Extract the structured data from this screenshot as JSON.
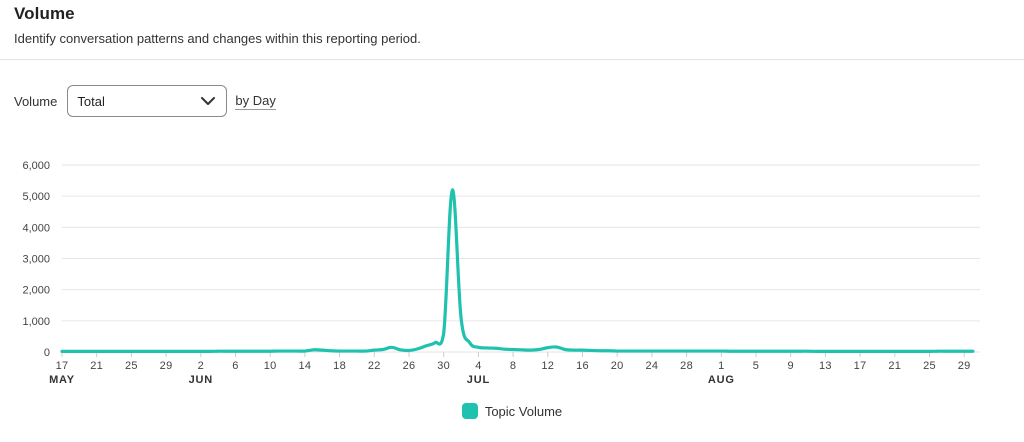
{
  "header": {
    "title": "Volume",
    "subtitle": "Identify conversation patterns and changes within this reporting period."
  },
  "controls": {
    "label": "Volume",
    "select_value": "Total",
    "by_label": "by Day"
  },
  "colors": {
    "series": "#1fc2ae",
    "grid": "#e6e6e6"
  },
  "chart_data": {
    "type": "line",
    "xlabel": "",
    "ylabel": "",
    "ylim": [
      0,
      6000
    ],
    "yticks": [
      0,
      1000,
      2000,
      3000,
      4000,
      5000,
      6000
    ],
    "ytick_labels": [
      "0",
      "1,000",
      "2,000",
      "3,000",
      "4,000",
      "5,000",
      "6,000"
    ],
    "x_tick_labels": [
      {
        "day": "17",
        "month": "MAY"
      },
      {
        "day": "21",
        "month": ""
      },
      {
        "day": "25",
        "month": ""
      },
      {
        "day": "29",
        "month": ""
      },
      {
        "day": "2",
        "month": "JUN"
      },
      {
        "day": "6",
        "month": ""
      },
      {
        "day": "10",
        "month": ""
      },
      {
        "day": "14",
        "month": ""
      },
      {
        "day": "18",
        "month": ""
      },
      {
        "day": "22",
        "month": ""
      },
      {
        "day": "26",
        "month": ""
      },
      {
        "day": "30",
        "month": ""
      },
      {
        "day": "4",
        "month": "JUL"
      },
      {
        "day": "8",
        "month": ""
      },
      {
        "day": "12",
        "month": ""
      },
      {
        "day": "16",
        "month": ""
      },
      {
        "day": "20",
        "month": ""
      },
      {
        "day": "24",
        "month": ""
      },
      {
        "day": "28",
        "month": ""
      },
      {
        "day": "1",
        "month": "AUG"
      },
      {
        "day": "5",
        "month": ""
      },
      {
        "day": "9",
        "month": ""
      },
      {
        "day": "13",
        "month": ""
      },
      {
        "day": "17",
        "month": ""
      },
      {
        "day": "21",
        "month": ""
      },
      {
        "day": "25",
        "month": ""
      },
      {
        "day": "29",
        "month": ""
      }
    ],
    "grid": true,
    "legend": "bottom-center",
    "series": [
      {
        "name": "Topic Volume",
        "values": [
          20,
          20,
          20,
          20,
          20,
          20,
          20,
          20,
          20,
          20,
          20,
          20,
          20,
          20,
          20,
          20,
          20,
          20,
          25,
          25,
          25,
          25,
          25,
          25,
          25,
          30,
          30,
          30,
          30,
          70,
          60,
          40,
          30,
          30,
          30,
          30,
          60,
          80,
          150,
          70,
          50,
          100,
          200,
          300,
          600,
          5200,
          1100,
          300,
          150,
          130,
          120,
          90,
          80,
          70,
          60,
          80,
          140,
          160,
          80,
          60,
          60,
          50,
          40,
          40,
          30,
          30,
          30,
          30,
          30,
          30,
          30,
          30,
          30,
          30,
          30,
          30,
          30,
          25,
          25,
          25,
          25,
          25,
          25,
          25,
          25,
          25,
          25,
          20,
          20,
          20,
          20,
          20,
          20,
          20,
          20,
          20,
          20,
          20,
          20,
          20,
          20,
          25,
          25,
          25,
          25,
          25,
          40,
          25,
          25,
          20,
          20,
          20,
          20,
          20,
          20,
          20,
          20,
          20,
          20,
          20,
          20,
          20,
          20,
          20,
          20,
          20,
          20,
          20,
          20,
          20,
          20,
          20,
          20,
          20,
          20,
          20,
          20,
          20,
          20,
          20,
          20,
          20,
          20,
          20,
          20,
          20,
          20,
          20,
          20,
          20,
          20,
          20,
          20,
          20,
          20
        ]
      }
    ]
  }
}
